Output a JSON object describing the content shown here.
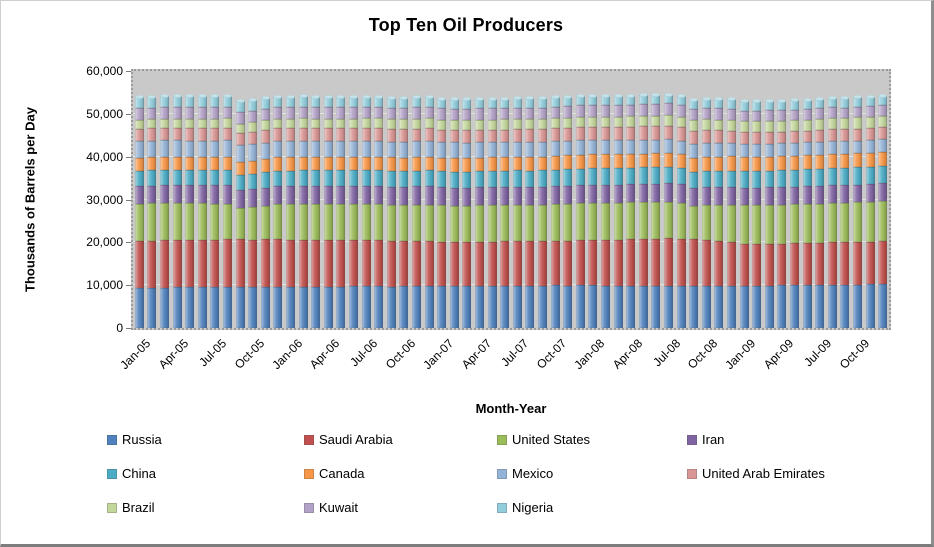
{
  "chart_data": {
    "type": "bar",
    "stacked": true,
    "title": "Top Ten Oil Producers",
    "xlabel": "Month-Year",
    "ylabel": "Thousands of Barrels per Day",
    "ylim": [
      0,
      60000
    ],
    "y_tick_interval": 10000,
    "y_tick_labels": [
      "0",
      "10,000",
      "20,000",
      "30,000",
      "40,000",
      "50,000",
      "60,000"
    ],
    "x_tick_every": 3,
    "grid": true,
    "legend_position": "bottom",
    "plot_bg": "#c9c9c9",
    "categories": [
      "Jan-05",
      "Feb-05",
      "Mar-05",
      "Apr-05",
      "May-05",
      "Jun-05",
      "Jul-05",
      "Aug-05",
      "Sep-05",
      "Oct-05",
      "Nov-05",
      "Dec-05",
      "Jan-06",
      "Feb-06",
      "Mar-06",
      "Apr-06",
      "May-06",
      "Jun-06",
      "Jul-06",
      "Aug-06",
      "Sep-06",
      "Oct-06",
      "Nov-06",
      "Dec-06",
      "Jan-07",
      "Feb-07",
      "Mar-07",
      "Apr-07",
      "May-07",
      "Jun-07",
      "Jul-07",
      "Aug-07",
      "Sep-07",
      "Oct-07",
      "Nov-07",
      "Dec-07",
      "Jan-08",
      "Feb-08",
      "Mar-08",
      "Apr-08",
      "May-08",
      "Jun-08",
      "Jul-08",
      "Aug-08",
      "Sep-08",
      "Oct-08",
      "Nov-08",
      "Dec-08",
      "Jan-09",
      "Feb-09",
      "Mar-09",
      "Apr-09",
      "May-09",
      "Jun-09",
      "Jul-09",
      "Aug-09",
      "Sep-09",
      "Oct-09",
      "Nov-09",
      "Dec-09"
    ],
    "series": [
      {
        "name": "Russia",
        "color": "#4F81BD",
        "values": [
          9300,
          9350,
          9400,
          9450,
          9450,
          9500,
          9500,
          9550,
          9500,
          9550,
          9550,
          9600,
          9550,
          9600,
          9600,
          9650,
          9650,
          9700,
          9700,
          9700,
          9650,
          9700,
          9750,
          9750,
          9750,
          9800,
          9800,
          9850,
          9850,
          9900,
          9900,
          9850,
          9900,
          9950,
          9900,
          9950,
          9900,
          9850,
          9850,
          9800,
          9750,
          9750,
          9800,
          9750,
          9800,
          9850,
          9800,
          9850,
          9800,
          9850,
          9900,
          9950,
          9950,
          10000,
          10050,
          10100,
          10100,
          10150,
          10150,
          10200
        ]
      },
      {
        "name": "Saudi Arabia",
        "color": "#C0504D",
        "values": [
          11000,
          11050,
          11100,
          11100,
          11150,
          11100,
          11150,
          11200,
          11150,
          11100,
          11100,
          11050,
          11000,
          10950,
          10900,
          10850,
          10850,
          10800,
          10800,
          10750,
          10700,
          10650,
          10600,
          10550,
          10400,
          10300,
          10250,
          10250,
          10300,
          10300,
          10350,
          10400,
          10400,
          10450,
          10500,
          10600,
          10700,
          10800,
          10800,
          10900,
          11000,
          11100,
          11200,
          11100,
          10900,
          10800,
          10500,
          10200,
          9900,
          9800,
          9750,
          9750,
          9800,
          9800,
          9850,
          9900,
          9900,
          9950,
          10000,
          10050
        ]
      },
      {
        "name": "United States",
        "color": "#9BBB59",
        "values": [
          8600,
          8650,
          8600,
          8550,
          8500,
          8450,
          8400,
          8300,
          7300,
          7500,
          7900,
          8200,
          8300,
          8350,
          8350,
          8400,
          8400,
          8350,
          8400,
          8450,
          8400,
          8350,
          8450,
          8500,
          8450,
          8500,
          8450,
          8500,
          8450,
          8400,
          8450,
          8400,
          8450,
          8500,
          8550,
          8550,
          8550,
          8500,
          8550,
          8600,
          8600,
          8550,
          8500,
          8400,
          7700,
          8000,
          8400,
          8700,
          8900,
          9000,
          9000,
          9050,
          9100,
          9100,
          9150,
          9200,
          9200,
          9250,
          9300,
          9350
        ]
      },
      {
        "name": "Iran",
        "color": "#8064A2",
        "values": [
          4150,
          4150,
          4200,
          4200,
          4200,
          4250,
          4250,
          4250,
          4200,
          4200,
          4200,
          4200,
          4200,
          4250,
          4250,
          4250,
          4250,
          4300,
          4300,
          4250,
          4250,
          4250,
          4250,
          4250,
          4200,
          4200,
          4250,
          4250,
          4250,
          4300,
          4300,
          4300,
          4250,
          4250,
          4300,
          4300,
          4300,
          4300,
          4250,
          4250,
          4300,
          4300,
          4300,
          4250,
          4250,
          4250,
          4200,
          4150,
          4100,
          4100,
          4150,
          4150,
          4150,
          4200,
          4200,
          4200,
          4150,
          4150,
          4150,
          4150
        ]
      },
      {
        "name": "China",
        "color": "#4BACC6",
        "values": [
          3600,
          3600,
          3620,
          3630,
          3640,
          3650,
          3650,
          3660,
          3650,
          3660,
          3670,
          3680,
          3680,
          3690,
          3700,
          3700,
          3710,
          3720,
          3720,
          3710,
          3700,
          3710,
          3720,
          3730,
          3730,
          3740,
          3750,
          3750,
          3760,
          3770,
          3770,
          3760,
          3770,
          3780,
          3780,
          3790,
          3800,
          3810,
          3820,
          3830,
          3840,
          3830,
          3830,
          3820,
          3820,
          3830,
          3840,
          3850,
          3850,
          3870,
          3890,
          3900,
          3920,
          3940,
          3950,
          3960,
          3970,
          3980,
          3990,
          3990
        ]
      },
      {
        "name": "Canada",
        "color": "#F79646",
        "values": [
          3050,
          3060,
          3040,
          3020,
          3000,
          2980,
          3000,
          3020,
          3040,
          3060,
          3080,
          3100,
          3120,
          3130,
          3110,
          3090,
          3080,
          3070,
          3080,
          3100,
          3120,
          3140,
          3160,
          3180,
          3200,
          3210,
          3220,
          3200,
          3190,
          3180,
          3190,
          3200,
          3220,
          3240,
          3250,
          3260,
          3250,
          3260,
          3270,
          3250,
          3230,
          3220,
          3230,
          3240,
          3250,
          3270,
          3280,
          3290,
          3280,
          3290,
          3300,
          3290,
          3280,
          3290,
          3300,
          3310,
          3320,
          3330,
          3340,
          3350
        ]
      },
      {
        "name": "Mexico",
        "color": "#95B3D7",
        "values": [
          3850,
          3860,
          3850,
          3840,
          3830,
          3820,
          3810,
          3800,
          3780,
          3790,
          3800,
          3800,
          3780,
          3760,
          3750,
          3740,
          3730,
          3720,
          3710,
          3700,
          3690,
          3680,
          3670,
          3660,
          3600,
          3580,
          3560,
          3540,
          3520,
          3500,
          3480,
          3460,
          3440,
          3420,
          3400,
          3380,
          3320,
          3300,
          3280,
          3260,
          3240,
          3220,
          3200,
          3180,
          3160,
          3140,
          3120,
          3100,
          3060,
          3040,
          3020,
          3010,
          3000,
          2990,
          2980,
          2970,
          2960,
          2950,
          2950,
          2940
        ]
      },
      {
        "name": "United Arab Emirates",
        "color": "#D99694",
        "values": [
          2900,
          2900,
          2910,
          2920,
          2920,
          2930,
          2930,
          2940,
          2930,
          2930,
          2940,
          2950,
          2950,
          2950,
          2960,
          2960,
          2970,
          2970,
          2980,
          2980,
          2970,
          2970,
          2980,
          2990,
          2950,
          2950,
          2960,
          2960,
          2970,
          2980,
          2980,
          2990,
          2990,
          3000,
          3010,
          3020,
          3050,
          3060,
          3070,
          3080,
          3090,
          3100,
          3110,
          3100,
          3080,
          3050,
          2980,
          2900,
          2820,
          2790,
          2770,
          2760,
          2760,
          2770,
          2770,
          2780,
          2780,
          2790,
          2800,
          2800
        ]
      },
      {
        "name": "Brazil",
        "color": "#C3D69B",
        "values": [
          2150,
          2160,
          2170,
          2170,
          2180,
          2190,
          2190,
          2200,
          2180,
          2200,
          2210,
          2220,
          2230,
          2240,
          2250,
          2250,
          2260,
          2270,
          2270,
          2280,
          2280,
          2290,
          2300,
          2310,
          2320,
          2330,
          2340,
          2340,
          2350,
          2360,
          2360,
          2370,
          2380,
          2390,
          2400,
          2420,
          2440,
          2450,
          2460,
          2470,
          2480,
          2490,
          2500,
          2490,
          2480,
          2500,
          2510,
          2530,
          2540,
          2550,
          2560,
          2570,
          2580,
          2590,
          2600,
          2610,
          2620,
          2630,
          2640,
          2650
        ]
      },
      {
        "name": "Kuwait",
        "color": "#B3A2C7",
        "values": [
          2650,
          2650,
          2660,
          2660,
          2670,
          2670,
          2680,
          2680,
          2670,
          2670,
          2680,
          2690,
          2690,
          2700,
          2700,
          2710,
          2710,
          2720,
          2720,
          2710,
          2700,
          2700,
          2710,
          2710,
          2650,
          2640,
          2640,
          2650,
          2650,
          2660,
          2660,
          2670,
          2670,
          2680,
          2690,
          2700,
          2720,
          2730,
          2740,
          2750,
          2760,
          2770,
          2780,
          2770,
          2750,
          2720,
          2650,
          2580,
          2500,
          2470,
          2450,
          2440,
          2440,
          2450,
          2450,
          2460,
          2460,
          2470,
          2480,
          2480
        ]
      },
      {
        "name": "Nigeria",
        "color": "#92CDDC",
        "values": [
          2600,
          2610,
          2600,
          2590,
          2580,
          2570,
          2560,
          2550,
          2540,
          2530,
          2520,
          2510,
          2480,
          2450,
          2300,
          2250,
          2300,
          2320,
          2340,
          2330,
          2320,
          2310,
          2300,
          2290,
          2280,
          2270,
          2260,
          2250,
          2240,
          2230,
          2230,
          2240,
          2250,
          2260,
          2270,
          2280,
          2250,
          2200,
          2150,
          2100,
          2080,
          2060,
          2050,
          2100,
          2150,
          2180,
          2200,
          2220,
          2180,
          2160,
          2150,
          2160,
          2170,
          2180,
          2190,
          2200,
          2210,
          2220,
          2230,
          2240
        ]
      }
    ]
  }
}
